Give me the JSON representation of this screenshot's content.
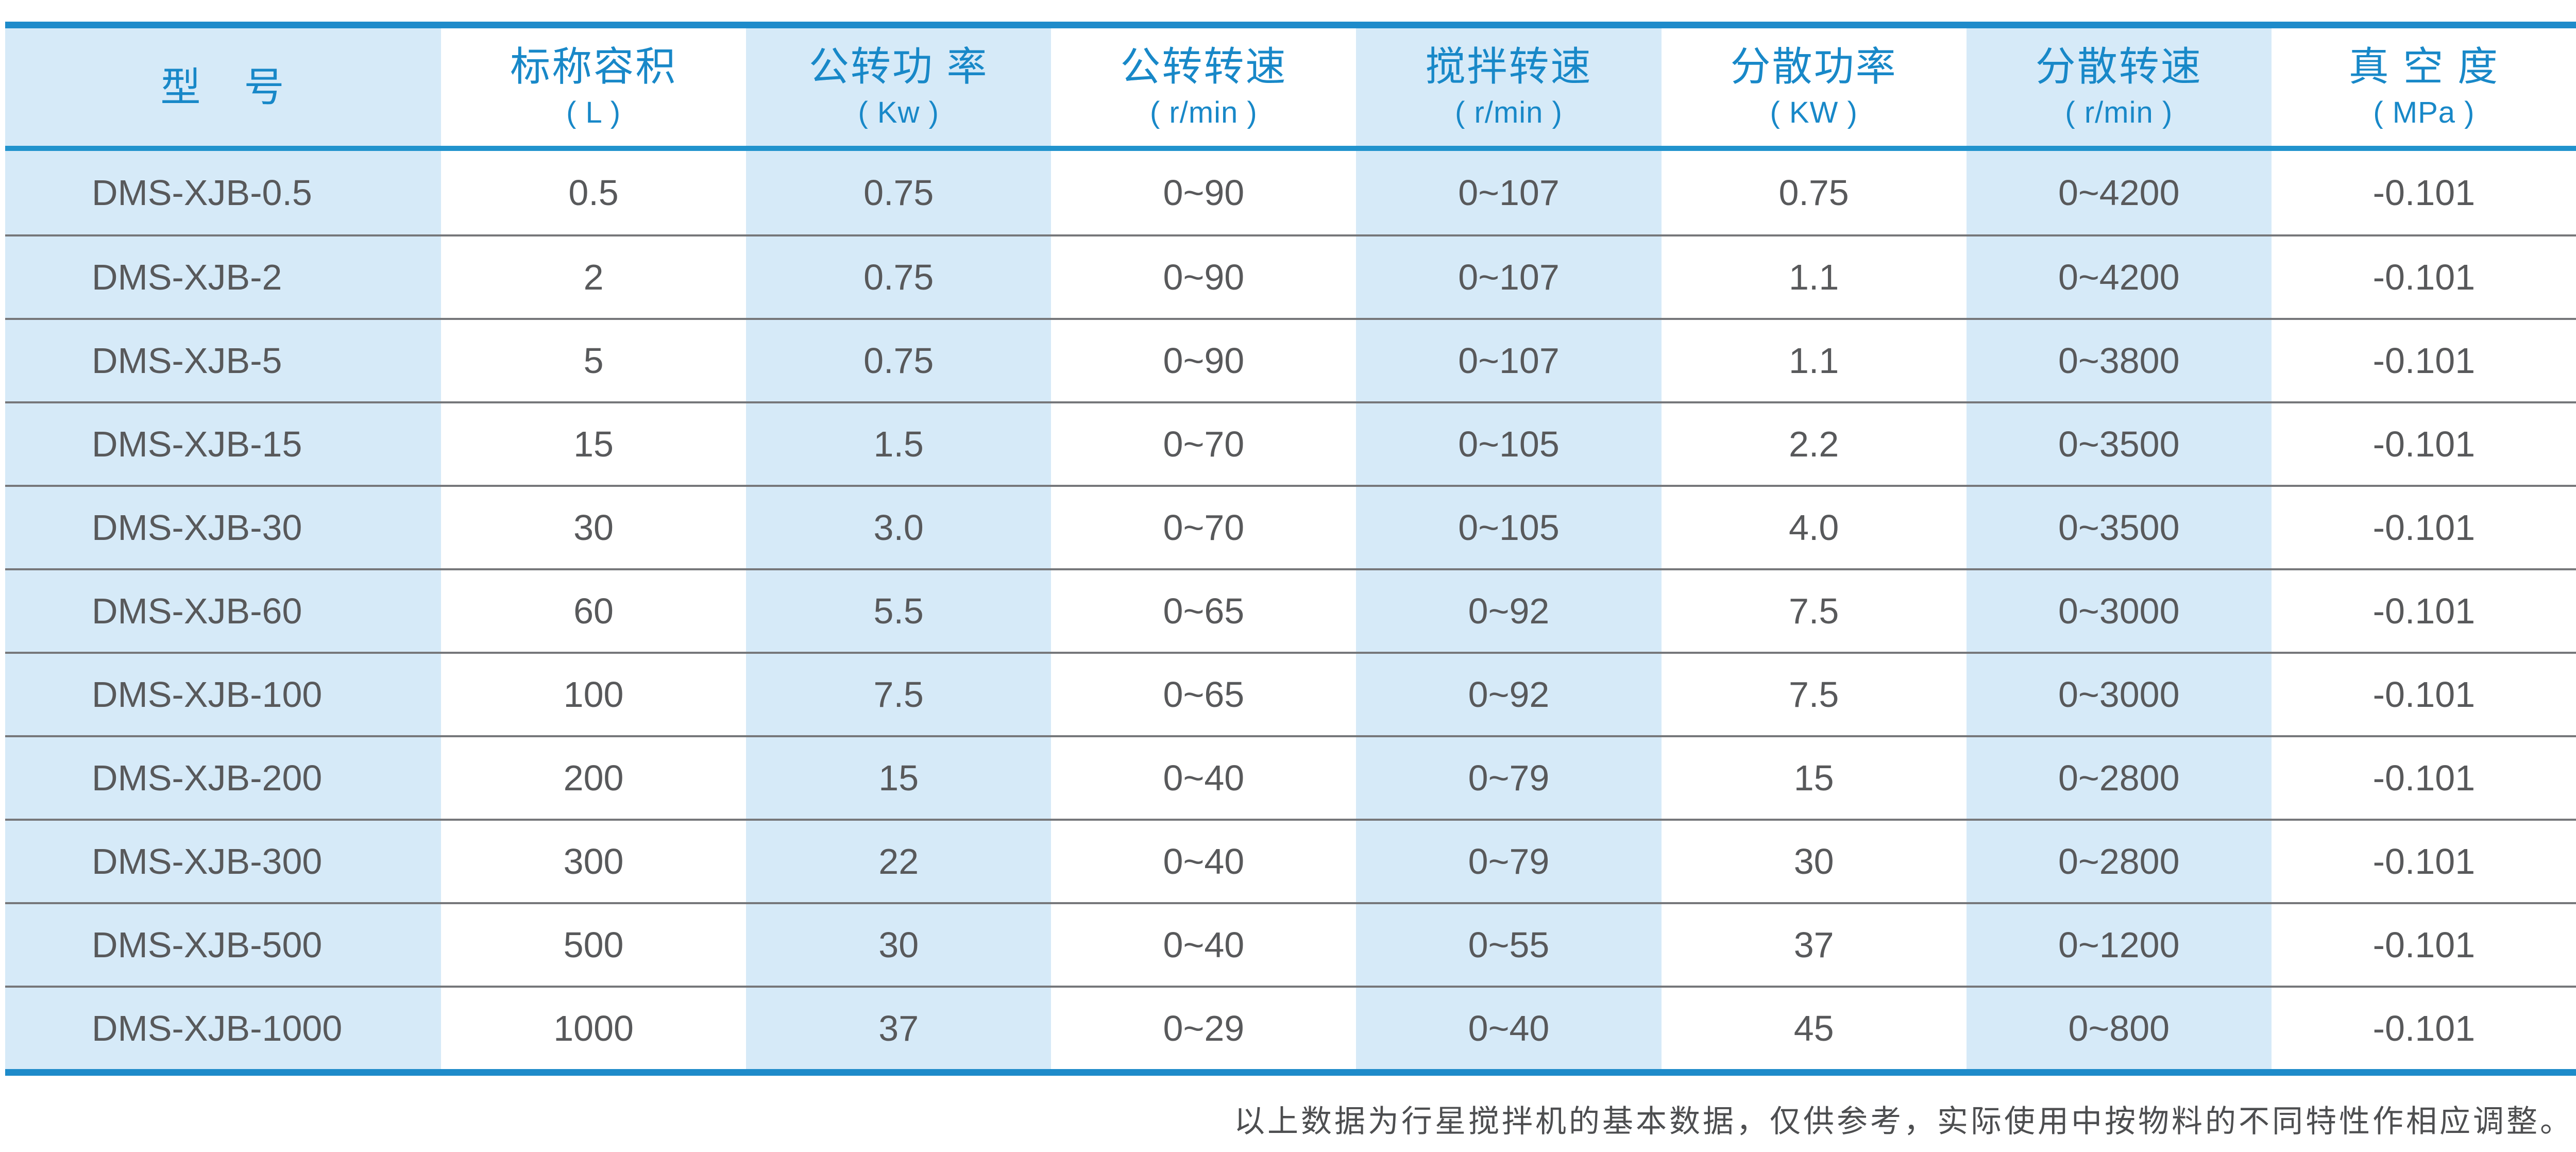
{
  "colors": {
    "accent_blue_border": "#1e8bca",
    "divider_blue": "#2193cd",
    "light_blue_column": "#d6eaf8",
    "header_text_blue": "#1888c8",
    "body_text_gray": "#58595b",
    "row_separator_gray": "#76777a"
  },
  "table": {
    "columns": [
      {
        "title": "型　号",
        "unit": ""
      },
      {
        "title": "标称容积",
        "unit": "( L )"
      },
      {
        "title": "公转功 率",
        "unit": "( Kw )"
      },
      {
        "title": "公转转速",
        "unit": "( r/min )"
      },
      {
        "title": "搅拌转速",
        "unit": "( r/min )"
      },
      {
        "title": "分散功率",
        "unit": "( KW )"
      },
      {
        "title": "分散转速",
        "unit": "( r/min )"
      },
      {
        "title": "真 空 度",
        "unit": "( MPa )"
      }
    ],
    "rows": [
      [
        "DMS-XJB-0.5",
        "0.5",
        "0.75",
        "0~90",
        "0~107",
        "0.75",
        "0~4200",
        "-0.101"
      ],
      [
        "DMS-XJB-2",
        "2",
        "0.75",
        "0~90",
        "0~107",
        "1.1",
        "0~4200",
        "-0.101"
      ],
      [
        "DMS-XJB-5",
        "5",
        "0.75",
        "0~90",
        "0~107",
        "1.1",
        "0~3800",
        "-0.101"
      ],
      [
        "DMS-XJB-15",
        "15",
        "1.5",
        "0~70",
        "0~105",
        "2.2",
        "0~3500",
        "-0.101"
      ],
      [
        "DMS-XJB-30",
        "30",
        "3.0",
        "0~70",
        "0~105",
        "4.0",
        "0~3500",
        "-0.101"
      ],
      [
        "DMS-XJB-60",
        "60",
        "5.5",
        "0~65",
        "0~92",
        "7.5",
        "0~3000",
        "-0.101"
      ],
      [
        "DMS-XJB-100",
        "100",
        "7.5",
        "0~65",
        "0~92",
        "7.5",
        "0~3000",
        "-0.101"
      ],
      [
        "DMS-XJB-200",
        "200",
        "15",
        "0~40",
        "0~79",
        "15",
        "0~2800",
        "-0.101"
      ],
      [
        "DMS-XJB-300",
        "300",
        "22",
        "0~40",
        "0~79",
        "30",
        "0~2800",
        "-0.101"
      ],
      [
        "DMS-XJB-500",
        "500",
        "30",
        "0~40",
        "0~55",
        "37",
        "0~1200",
        "-0.101"
      ],
      [
        "DMS-XJB-1000",
        "1000",
        "37",
        "0~29",
        "0~40",
        "45",
        "0~800",
        "-0.101"
      ]
    ]
  },
  "footnote": "以上数据为行星搅拌机的基本数据，仅供参考，实际使用中按物料的不同特性作相应调整。"
}
